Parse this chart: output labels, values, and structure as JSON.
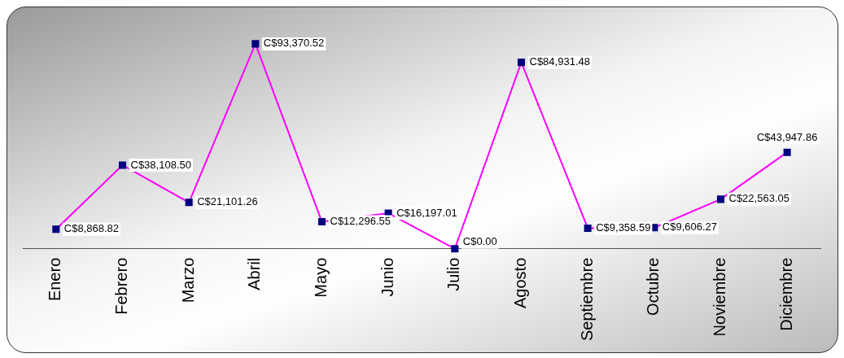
{
  "chart_data": {
    "type": "line",
    "categories": [
      "Enero",
      "Febrero",
      "Marzo",
      "Abril",
      "Mayo",
      "Junio",
      "Julio",
      "Agosto",
      "Septiembre",
      "Octubre",
      "Noviembre",
      "Diciembre"
    ],
    "series": [
      {
        "color": "#ff00ff",
        "values": [
          8868.82,
          38108.5,
          21101.26,
          93370.52,
          12296.55,
          16197.01,
          0.0,
          84931.48,
          9358.59,
          9606.27,
          22563.05,
          43947.86
        ],
        "value_labels": [
          "C$8,868.82",
          "C$38,108.50",
          "C$21,101.26",
          "C$93,370.52",
          "C$12,296.55",
          "C$16,197.01",
          "C$0.00",
          "C$84,931.48",
          "C$9,358.59",
          "C$9,606.27",
          "C$22,563.05",
          "C$43,947.86"
        ]
      }
    ],
    "marker": "square",
    "grid": false,
    "legend": false,
    "line_style": "solid",
    "tick_labels": "x"
  }
}
